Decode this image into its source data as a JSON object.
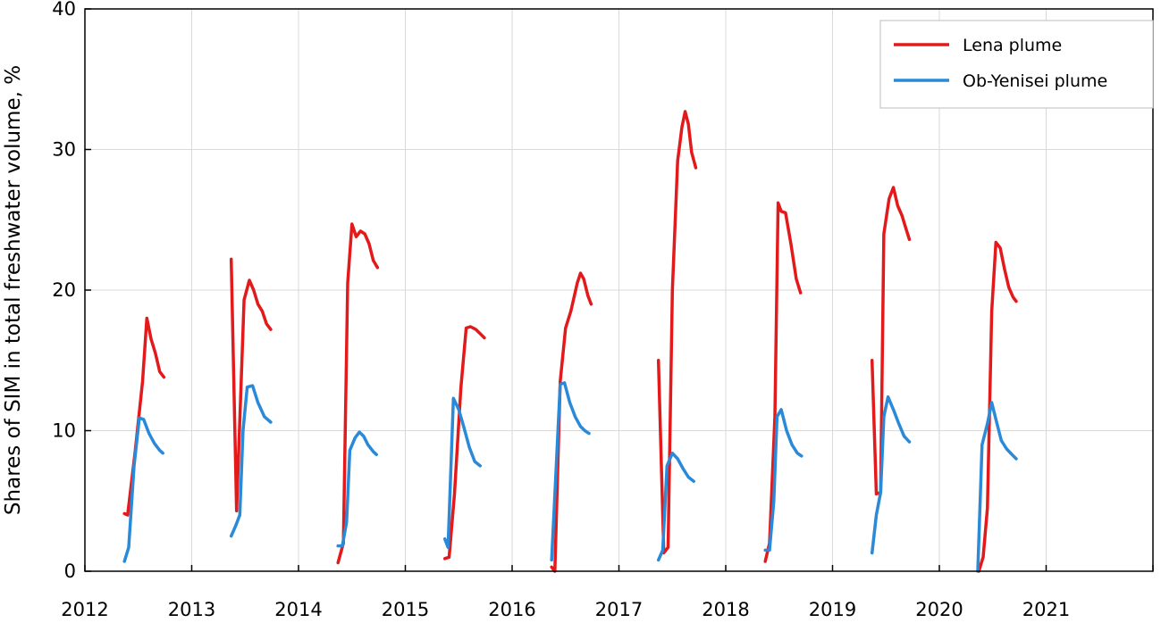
{
  "chart_data": {
    "type": "line",
    "title": "",
    "xlabel": "",
    "ylabel": "Shares of SIM in total freshwater volume, %",
    "xlim": [
      2012,
      2022
    ],
    "ylim": [
      0,
      40
    ],
    "xticks": [
      "2012",
      "2013",
      "2014",
      "2015",
      "2016",
      "2017",
      "2018",
      "2019",
      "2020",
      "2021"
    ],
    "yticks": [
      "0",
      "10",
      "20",
      "30",
      "40"
    ],
    "grid": true,
    "legend_position": "top-right",
    "series": [
      {
        "name": "Lena plume",
        "color": "#e31a1c",
        "segments": [
          [
            [
              2012.37,
              4.1
            ],
            [
              2012.4,
              4.0
            ],
            [
              2012.47,
              8.5
            ],
            [
              2012.54,
              13.5
            ],
            [
              2012.58,
              18.0
            ],
            [
              2012.62,
              16.5
            ],
            [
              2012.66,
              15.5
            ],
            [
              2012.7,
              14.2
            ],
            [
              2012.74,
              13.8
            ]
          ],
          [
            [
              2013.37,
              22.2
            ],
            [
              2013.42,
              4.3
            ],
            [
              2013.49,
              19.3
            ],
            [
              2013.54,
              20.7
            ],
            [
              2013.58,
              20.0
            ],
            [
              2013.62,
              19.0
            ],
            [
              2013.66,
              18.5
            ],
            [
              2013.7,
              17.6
            ],
            [
              2013.74,
              17.2
            ]
          ],
          [
            [
              2014.37,
              0.6
            ],
            [
              2014.42,
              2.0
            ],
            [
              2014.46,
              20.5
            ],
            [
              2014.5,
              24.7
            ],
            [
              2014.54,
              23.8
            ],
            [
              2014.58,
              24.2
            ],
            [
              2014.62,
              24.0
            ],
            [
              2014.66,
              23.3
            ],
            [
              2014.7,
              22.1
            ],
            [
              2014.74,
              21.6
            ]
          ],
          [
            [
              2015.37,
              0.9
            ],
            [
              2015.41,
              1.0
            ],
            [
              2015.46,
              5.5
            ],
            [
              2015.52,
              13.0
            ],
            [
              2015.57,
              17.3
            ],
            [
              2015.61,
              17.4
            ],
            [
              2015.66,
              17.2
            ],
            [
              2015.7,
              16.9
            ],
            [
              2015.74,
              16.6
            ]
          ],
          [
            [
              2016.37,
              0.3
            ],
            [
              2016.4,
              0.0
            ],
            [
              2016.45,
              13.5
            ],
            [
              2016.5,
              17.3
            ],
            [
              2016.55,
              18.5
            ],
            [
              2016.61,
              20.5
            ],
            [
              2016.64,
              21.2
            ],
            [
              2016.67,
              20.8
            ],
            [
              2016.71,
              19.6
            ],
            [
              2016.74,
              19.0
            ]
          ],
          [
            [
              2017.37,
              15.0
            ],
            [
              2017.42,
              1.3
            ],
            [
              2017.46,
              1.7
            ],
            [
              2017.5,
              20.0
            ],
            [
              2017.55,
              29.2
            ],
            [
              2017.59,
              31.6
            ],
            [
              2017.62,
              32.7
            ],
            [
              2017.65,
              31.8
            ],
            [
              2017.68,
              29.8
            ],
            [
              2017.72,
              28.7
            ]
          ],
          [
            [
              2018.37,
              0.7
            ],
            [
              2018.41,
              2.0
            ],
            [
              2018.46,
              11.0
            ],
            [
              2018.49,
              26.2
            ],
            [
              2018.52,
              25.6
            ],
            [
              2018.56,
              25.5
            ],
            [
              2018.61,
              23.3
            ],
            [
              2018.66,
              20.8
            ],
            [
              2018.7,
              19.8
            ]
          ],
          [
            [
              2019.37,
              15.0
            ],
            [
              2019.41,
              5.5
            ],
            [
              2019.45,
              5.6
            ],
            [
              2019.48,
              24.0
            ],
            [
              2019.53,
              26.5
            ],
            [
              2019.57,
              27.3
            ],
            [
              2019.61,
              26.0
            ],
            [
              2019.65,
              25.3
            ],
            [
              2019.69,
              24.3
            ],
            [
              2019.72,
              23.6
            ]
          ],
          [
            [
              2020.37,
              0.0
            ],
            [
              2020.41,
              1.0
            ],
            [
              2020.45,
              4.5
            ],
            [
              2020.49,
              18.5
            ],
            [
              2020.53,
              23.4
            ],
            [
              2020.57,
              23.0
            ],
            [
              2020.61,
              21.5
            ],
            [
              2020.65,
              20.2
            ],
            [
              2020.69,
              19.5
            ],
            [
              2020.72,
              19.2
            ]
          ]
        ]
      },
      {
        "name": "Ob-Yenisei plume",
        "color": "#2b8ad8",
        "segments": [
          [
            [
              2012.37,
              0.7
            ],
            [
              2012.41,
              1.7
            ],
            [
              2012.46,
              7.5
            ],
            [
              2012.51,
              10.9
            ],
            [
              2012.55,
              10.8
            ],
            [
              2012.6,
              9.8
            ],
            [
              2012.65,
              9.1
            ],
            [
              2012.7,
              8.6
            ],
            [
              2012.73,
              8.4
            ]
          ],
          [
            [
              2013.37,
              2.5
            ],
            [
              2013.41,
              3.2
            ],
            [
              2013.45,
              4.0
            ],
            [
              2013.48,
              10.0
            ],
            [
              2013.52,
              13.1
            ],
            [
              2013.57,
              13.2
            ],
            [
              2013.62,
              12.0
            ],
            [
              2013.68,
              11.0
            ],
            [
              2013.74,
              10.6
            ]
          ],
          [
            [
              2014.37,
              1.8
            ],
            [
              2014.41,
              1.8
            ],
            [
              2014.45,
              3.5
            ],
            [
              2014.48,
              8.6
            ],
            [
              2014.53,
              9.5
            ],
            [
              2014.57,
              9.9
            ],
            [
              2014.61,
              9.6
            ],
            [
              2014.65,
              9.0
            ],
            [
              2014.7,
              8.5
            ],
            [
              2014.73,
              8.3
            ]
          ],
          [
            [
              2015.37,
              2.3
            ],
            [
              2015.4,
              1.7
            ],
            [
              2015.45,
              12.3
            ],
            [
              2015.5,
              11.5
            ],
            [
              2015.55,
              10.2
            ],
            [
              2015.6,
              8.8
            ],
            [
              2015.65,
              7.8
            ],
            [
              2015.7,
              7.5
            ]
          ],
          [
            [
              2016.37,
              0.8
            ],
            [
              2016.41,
              7.0
            ],
            [
              2016.45,
              13.3
            ],
            [
              2016.49,
              13.4
            ],
            [
              2016.54,
              12.0
            ],
            [
              2016.59,
              11.0
            ],
            [
              2016.64,
              10.3
            ],
            [
              2016.68,
              10.0
            ],
            [
              2016.72,
              9.8
            ]
          ],
          [
            [
              2017.37,
              0.8
            ],
            [
              2017.41,
              1.5
            ],
            [
              2017.45,
              7.5
            ],
            [
              2017.5,
              8.4
            ],
            [
              2017.55,
              8.0
            ],
            [
              2017.6,
              7.3
            ],
            [
              2017.65,
              6.7
            ],
            [
              2017.7,
              6.4
            ]
          ],
          [
            [
              2018.37,
              1.5
            ],
            [
              2018.41,
              1.5
            ],
            [
              2018.45,
              5.0
            ],
            [
              2018.48,
              11.0
            ],
            [
              2018.52,
              11.5
            ],
            [
              2018.57,
              10.0
            ],
            [
              2018.62,
              9.0
            ],
            [
              2018.67,
              8.4
            ],
            [
              2018.71,
              8.2
            ]
          ],
          [
            [
              2019.37,
              1.3
            ],
            [
              2019.41,
              4.0
            ],
            [
              2019.45,
              5.6
            ],
            [
              2019.48,
              11.0
            ],
            [
              2019.52,
              12.4
            ],
            [
              2019.57,
              11.5
            ],
            [
              2019.62,
              10.5
            ],
            [
              2019.67,
              9.6
            ],
            [
              2019.72,
              9.2
            ]
          ],
          [
            [
              2020.36,
              0.0
            ],
            [
              2020.4,
              9.0
            ],
            [
              2020.45,
              10.5
            ],
            [
              2020.49,
              12.0
            ],
            [
              2020.53,
              10.8
            ],
            [
              2020.58,
              9.3
            ],
            [
              2020.63,
              8.7
            ],
            [
              2020.68,
              8.3
            ],
            [
              2020.72,
              8.0
            ]
          ]
        ]
      }
    ]
  }
}
